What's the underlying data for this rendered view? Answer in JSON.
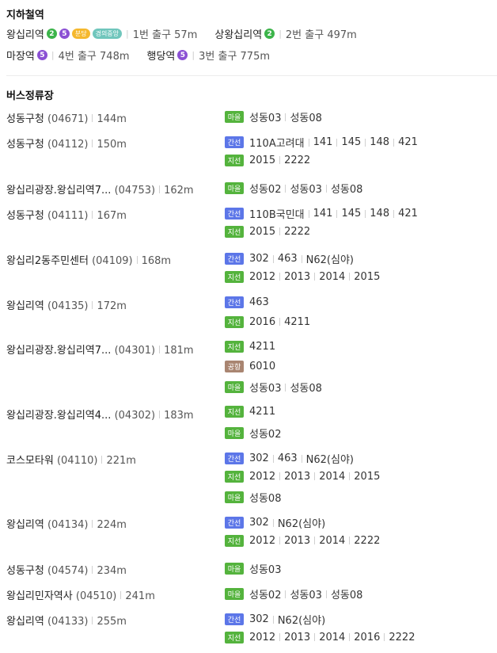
{
  "subway": {
    "title": "지하철역",
    "stations": [
      {
        "name": "왕십리역",
        "lines": [
          {
            "label": "2",
            "color": "#3cb44a",
            "type": "circle"
          },
          {
            "label": "5",
            "color": "#8b50d4",
            "type": "circle"
          },
          {
            "label": "분당",
            "color": "#f5b82e",
            "type": "pill"
          },
          {
            "label": "경의중앙",
            "color": "#70c6bc",
            "type": "pill"
          }
        ],
        "exit": "1번 출구 57m"
      },
      {
        "name": "상왕십리역",
        "lines": [
          {
            "label": "2",
            "color": "#3cb44a",
            "type": "circle"
          }
        ],
        "exit": "2번 출구 497m"
      },
      {
        "name": "마장역",
        "lines": [
          {
            "label": "5",
            "color": "#8b50d4",
            "type": "circle"
          }
        ],
        "exit": "4번 출구 748m"
      },
      {
        "name": "행당역",
        "lines": [
          {
            "label": "5",
            "color": "#8b50d4",
            "type": "circle"
          }
        ],
        "exit": "3번 출구 775m"
      }
    ]
  },
  "bus": {
    "title": "버스정류장",
    "type_labels": {
      "maeul": "마을",
      "ganseon": "간선",
      "jiseon": "지선",
      "airport": "공항"
    },
    "stops": [
      {
        "name": "성동구청",
        "code": "(04671)",
        "distance": "144m",
        "routes": [
          {
            "type": "마을",
            "color": "green",
            "numbers": [
              "성동03",
              "성동08"
            ]
          }
        ]
      },
      {
        "name": "성동구청",
        "code": "(04112)",
        "distance": "150m",
        "routes": [
          {
            "type": "간선",
            "color": "blue",
            "numbers": [
              "110A고려대",
              "141",
              "145",
              "148",
              "421"
            ]
          },
          {
            "type": "지선",
            "color": "green",
            "numbers": [
              "2015",
              "2222"
            ]
          }
        ]
      },
      {
        "name": "왕십리광장.왕십리역7...",
        "code": "(04753)",
        "distance": "162m",
        "routes": [
          {
            "type": "마을",
            "color": "green",
            "numbers": [
              "성동02",
              "성동03",
              "성동08"
            ]
          }
        ]
      },
      {
        "name": "성동구청",
        "code": "(04111)",
        "distance": "167m",
        "routes": [
          {
            "type": "간선",
            "color": "blue",
            "numbers": [
              "110B국민대",
              "141",
              "145",
              "148",
              "421"
            ]
          },
          {
            "type": "지선",
            "color": "green",
            "numbers": [
              "2015",
              "2222"
            ]
          }
        ]
      },
      {
        "name": "왕십리2동주민센터",
        "code": "(04109)",
        "distance": "168m",
        "routes": [
          {
            "type": "간선",
            "color": "blue",
            "numbers": [
              "302",
              "463",
              "N62(심야)"
            ]
          },
          {
            "type": "지선",
            "color": "green",
            "numbers": [
              "2012",
              "2013",
              "2014",
              "2015"
            ]
          }
        ]
      },
      {
        "name": "왕십리역",
        "code": "(04135)",
        "distance": "172m",
        "routes": [
          {
            "type": "간선",
            "color": "blue",
            "numbers": [
              "463"
            ]
          },
          {
            "type": "지선",
            "color": "green",
            "numbers": [
              "2016",
              "4211"
            ]
          }
        ]
      },
      {
        "name": "왕십리광장.왕십리역7...",
        "code": "(04301)",
        "distance": "181m",
        "routes": [
          {
            "type": "지선",
            "color": "green",
            "numbers": [
              "4211"
            ]
          },
          {
            "type": "공항",
            "color": "brown",
            "numbers": [
              "6010"
            ]
          },
          {
            "type": "마을",
            "color": "green",
            "numbers": [
              "성동03",
              "성동08"
            ]
          }
        ]
      },
      {
        "name": "왕십리광장.왕십리역4...",
        "code": "(04302)",
        "distance": "183m",
        "routes": [
          {
            "type": "지선",
            "color": "green",
            "numbers": [
              "4211"
            ]
          },
          {
            "type": "마을",
            "color": "green",
            "numbers": [
              "성동02"
            ]
          }
        ]
      },
      {
        "name": "코스모타워",
        "code": "(04110)",
        "distance": "221m",
        "routes": [
          {
            "type": "간선",
            "color": "blue",
            "numbers": [
              "302",
              "463",
              "N62(심야)"
            ]
          },
          {
            "type": "지선",
            "color": "green",
            "numbers": [
              "2012",
              "2013",
              "2014",
              "2015"
            ]
          },
          {
            "type": "마을",
            "color": "green",
            "numbers": [
              "성동08"
            ]
          }
        ]
      },
      {
        "name": "왕십리역",
        "code": "(04134)",
        "distance": "224m",
        "routes": [
          {
            "type": "간선",
            "color": "blue",
            "numbers": [
              "302",
              "N62(심야)"
            ]
          },
          {
            "type": "지선",
            "color": "green",
            "numbers": [
              "2012",
              "2013",
              "2014",
              "2222"
            ]
          }
        ]
      },
      {
        "name": "성동구청",
        "code": "(04574)",
        "distance": "234m",
        "routes": [
          {
            "type": "마을",
            "color": "green",
            "numbers": [
              "성동03"
            ]
          }
        ]
      },
      {
        "name": "왕십리민자역사",
        "code": "(04510)",
        "distance": "241m",
        "routes": [
          {
            "type": "마을",
            "color": "green",
            "numbers": [
              "성동02",
              "성동03",
              "성동08"
            ]
          }
        ]
      },
      {
        "name": "왕십리역",
        "code": "(04133)",
        "distance": "255m",
        "routes": [
          {
            "type": "간선",
            "color": "blue",
            "numbers": [
              "302",
              "N62(심야)"
            ]
          },
          {
            "type": "지선",
            "color": "green",
            "numbers": [
              "2012",
              "2013",
              "2014",
              "2016",
              "2222"
            ]
          }
        ]
      }
    ]
  }
}
